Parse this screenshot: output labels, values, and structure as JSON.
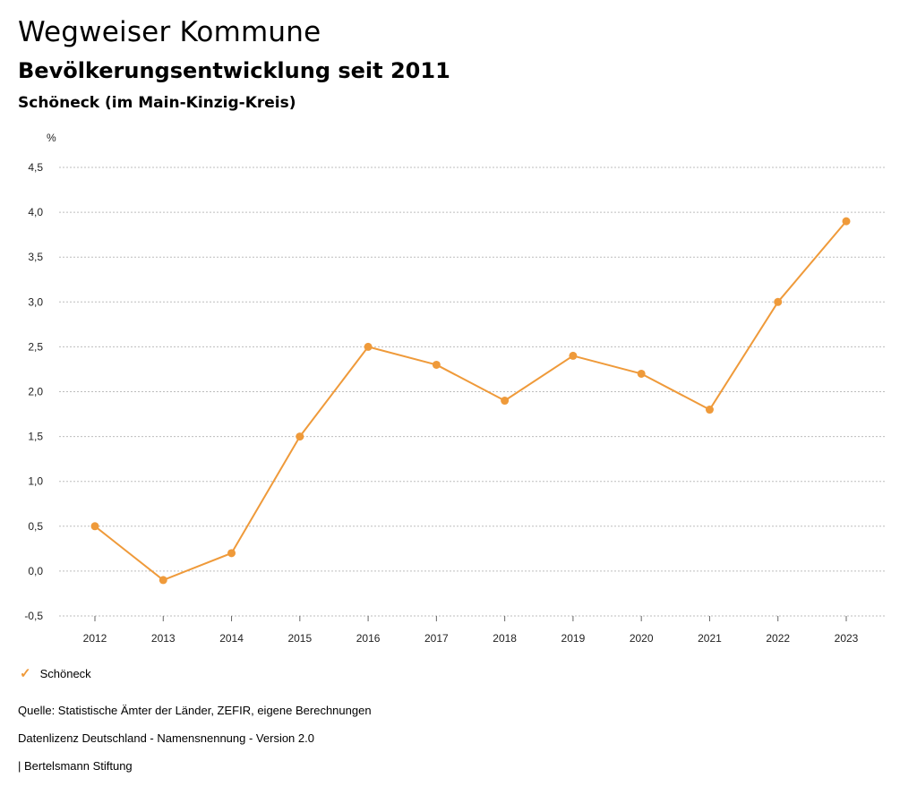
{
  "header": {
    "title": "Wegweiser Kommune",
    "subtitle": "Bevölkerungsentwicklung seit 2011",
    "region": "Schöneck (im Main-Kinzig-Kreis)"
  },
  "legend": {
    "label": "Schöneck",
    "marker": "check-icon"
  },
  "footer": {
    "source": "Quelle: Statistische Ämter der Länder, ZEFIR, eigene Berechnungen",
    "license": "Datenlizenz Deutschland - Namensnennung - Version 2.0",
    "publisher": "| Bertelsmann Stiftung"
  },
  "colors": {
    "series": "#ef9a3a",
    "grid": "#bdbdbd",
    "text": "#222222"
  },
  "chart_data": {
    "type": "line",
    "title": "Bevölkerungsentwicklung seit 2011",
    "ylabel": "%",
    "xlabel": "",
    "categories": [
      "2012",
      "2013",
      "2014",
      "2015",
      "2016",
      "2017",
      "2018",
      "2019",
      "2020",
      "2021",
      "2022",
      "2023"
    ],
    "series": [
      {
        "name": "Schöneck",
        "values": [
          0.5,
          -0.1,
          0.2,
          1.5,
          2.5,
          2.3,
          1.9,
          2.4,
          2.2,
          1.8,
          3.0,
          3.9
        ]
      }
    ],
    "y_ticks": [
      "-0,5",
      "0,0",
      "0,5",
      "1,0",
      "1,5",
      "2,0",
      "2,5",
      "3,0",
      "3,5",
      "4,0",
      "4,5"
    ],
    "ylim": [
      -0.5,
      4.5
    ],
    "grid": true,
    "legend_position": "bottom-left"
  }
}
